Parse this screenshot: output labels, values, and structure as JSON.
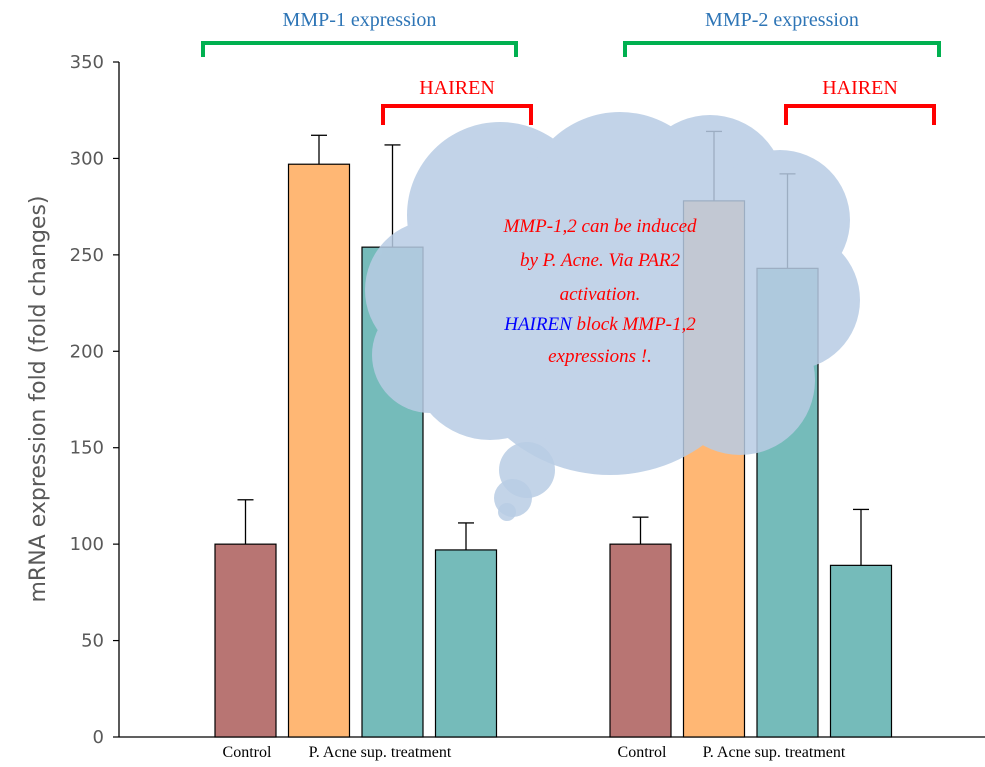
{
  "chart_data": {
    "type": "bar",
    "ylabel": "mRNA expression fold (fold changes)",
    "ylim": [
      0,
      350
    ],
    "yticks": [
      0,
      50,
      100,
      150,
      200,
      250,
      300,
      350
    ],
    "grid": false,
    "categories": [
      "Control",
      "P. Acne sup. treatment"
    ],
    "groups": [
      {
        "title": "MMP-1 expression",
        "bracket_label": "HAIREN",
        "bars": [
          {
            "value": 100,
            "error": 23,
            "color": "#b87573"
          },
          {
            "value": 297,
            "error": 15,
            "color": "#ffb774"
          },
          {
            "value": 254,
            "error": 53,
            "color": "#75bbba"
          },
          {
            "value": 97,
            "error": 14,
            "color": "#75bbba"
          }
        ]
      },
      {
        "title": "MMP-2 expression",
        "bracket_label": "HAIREN",
        "bars": [
          {
            "value": 100,
            "error": 14,
            "color": "#b87573"
          },
          {
            "value": 278,
            "error": 36,
            "color": "#ffb774"
          },
          {
            "value": 243,
            "error": 49,
            "color": "#75bbba"
          },
          {
            "value": 89,
            "error": 29,
            "color": "#75bbba"
          }
        ]
      }
    ],
    "annotation": {
      "lines": [
        {
          "parts": [
            {
              "text": "MMP-1,2 can be  induced",
              "color": "red"
            }
          ]
        },
        {
          "parts": [
            {
              "text": "by P. Acne. Via PAR2",
              "color": "red"
            }
          ]
        },
        {
          "parts": [
            {
              "text": "activation.",
              "color": "red"
            }
          ]
        },
        {
          "parts": [
            {
              "text": "HAIREN",
              "color": "blue"
            },
            {
              "text": " block MMP-1,2",
              "color": "red"
            }
          ]
        },
        {
          "parts": [
            {
              "text": "expressions !.",
              "color": "red"
            }
          ]
        }
      ]
    },
    "colors": {
      "bracket_group": "#00b050",
      "bracket_hairen": "#ff0000",
      "group_title": "#2e75b6",
      "cloud": "#b8cce4"
    }
  }
}
